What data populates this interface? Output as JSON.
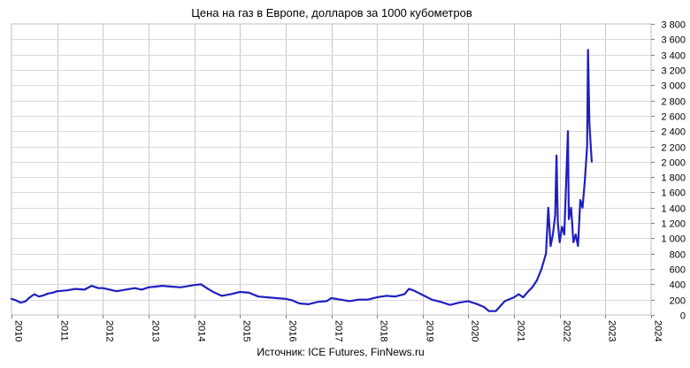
{
  "chart_data": {
    "type": "line",
    "title": "Цена на газ в Европе, долларов за 1000 кубометров",
    "source": "Источник: ICE Futures, FinNews.ru",
    "xlabel": "",
    "ylabel": "",
    "xlim": [
      2010,
      2024
    ],
    "ylim": [
      0,
      3800
    ],
    "x_ticks": [
      "2010",
      "2011",
      "2012",
      "2013",
      "2014",
      "2015",
      "2016",
      "2017",
      "2018",
      "2019",
      "2020",
      "2021",
      "2022",
      "2023",
      "2024"
    ],
    "y_ticks": [
      "0",
      "200",
      "400",
      "600",
      "800",
      "1 000",
      "1 200",
      "1 400",
      "1 600",
      "1 800",
      "2 000",
      "2 200",
      "2 400",
      "2 600",
      "2 800",
      "3 000",
      "3 200",
      "3 400",
      "3 600",
      "3 800"
    ],
    "grid": true,
    "legend": "none",
    "line_color": "#1f1fbf",
    "series": [
      {
        "x": [
          2010.0,
          2010.1,
          2010.2,
          2010.3,
          2010.4,
          2010.5,
          2010.6,
          2010.7,
          2010.8,
          2010.9,
          2011.0,
          2011.2,
          2011.4,
          2011.6,
          2011.75,
          2011.9,
          2012.0,
          2012.15,
          2012.3,
          2012.5,
          2012.7,
          2012.85,
          2013.0,
          2013.15,
          2013.3,
          2013.5,
          2013.7,
          2013.9,
          2014.0,
          2014.15,
          2014.3,
          2014.45,
          2014.6,
          2014.8,
          2015.0,
          2015.2,
          2015.4,
          2015.6,
          2015.8,
          2016.0,
          2016.15,
          2016.3,
          2016.5,
          2016.7,
          2016.9,
          2017.0,
          2017.2,
          2017.4,
          2017.6,
          2017.8,
          2018.0,
          2018.2,
          2018.4,
          2018.6,
          2018.7,
          2018.8,
          2019.0,
          2019.2,
          2019.4,
          2019.6,
          2019.8,
          2020.0,
          2020.2,
          2020.35,
          2020.45,
          2020.6,
          2020.8,
          2021.0,
          2021.1,
          2021.2,
          2021.3,
          2021.4,
          2021.5,
          2021.6,
          2021.7,
          2021.75,
          2021.8,
          2021.85,
          2021.9,
          2021.93,
          2021.96,
          2022.0,
          2022.05,
          2022.1,
          2022.15,
          2022.18,
          2022.2,
          2022.25,
          2022.3,
          2022.35,
          2022.4,
          2022.45,
          2022.5,
          2022.55,
          2022.6,
          2022.62,
          2022.65,
          2022.67,
          2022.7
        ],
        "y": [
          210,
          190,
          160,
          175,
          230,
          270,
          240,
          255,
          280,
          290,
          310,
          320,
          340,
          330,
          380,
          350,
          350,
          330,
          310,
          330,
          350,
          330,
          360,
          370,
          380,
          370,
          360,
          380,
          390,
          400,
          340,
          290,
          250,
          270,
          300,
          290,
          240,
          230,
          220,
          210,
          190,
          150,
          140,
          170,
          180,
          220,
          200,
          180,
          200,
          200,
          230,
          250,
          240,
          270,
          340,
          320,
          260,
          200,
          170,
          130,
          160,
          180,
          140,
          100,
          50,
          50,
          180,
          230,
          270,
          230,
          300,
          360,
          450,
          600,
          800,
          1400,
          900,
          1050,
          1300,
          2080,
          1200,
          950,
          1150,
          1050,
          1900,
          2400,
          1250,
          1400,
          950,
          1050,
          900,
          1500,
          1400,
          1750,
          2200,
          3460,
          2500,
          2300,
          2000
        ]
      }
    ]
  }
}
